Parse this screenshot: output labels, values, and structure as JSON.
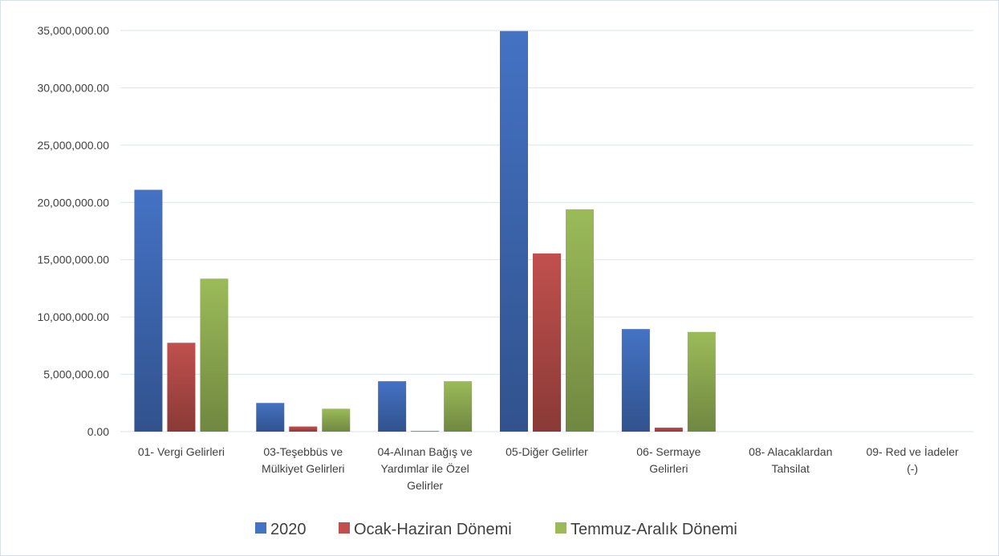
{
  "chart_data": {
    "type": "bar",
    "ylim": [
      0,
      35000000
    ],
    "yticks": [
      0,
      5000000,
      10000000,
      15000000,
      20000000,
      25000000,
      30000000,
      35000000
    ],
    "ytick_labels": [
      "0.00",
      "5,000,000.00",
      "10,000,000.00",
      "15,000,000.00",
      "20,000,000.00",
      "25,000,000.00",
      "30,000,000.00",
      "35,000,000.00"
    ],
    "grid": true,
    "legend_position": "bottom",
    "categories": [
      [
        "01- Vergi Gelirleri"
      ],
      [
        "03-Teşebbüs ve",
        "Mülkiyet Gelirleri"
      ],
      [
        "04-Alınan Bağış ve",
        "Yardımlar ile Özel",
        "Gelirler"
      ],
      [
        "05-Diğer Gelirler"
      ],
      [
        "06- Sermaye",
        "Gelirleri"
      ],
      [
        "08- Alacaklardan",
        "Tahsilat"
      ],
      [
        "09- Red ve İadeler",
        "(-)"
      ]
    ],
    "series": [
      {
        "name": "2020",
        "color": "#4472c4",
        "values": [
          21100000,
          2500000,
          4400000,
          34950000,
          8950000,
          0,
          0
        ]
      },
      {
        "name": "Ocak-Haziran Dönemi",
        "color": "#c0504d",
        "values": [
          7750000,
          450000,
          50000,
          15550000,
          350000,
          0,
          0
        ]
      },
      {
        "name": "Temmuz-Aralık Dönemi",
        "color": "#9bbb59",
        "values": [
          13350000,
          2000000,
          4400000,
          19400000,
          8700000,
          0,
          0
        ]
      }
    ]
  }
}
